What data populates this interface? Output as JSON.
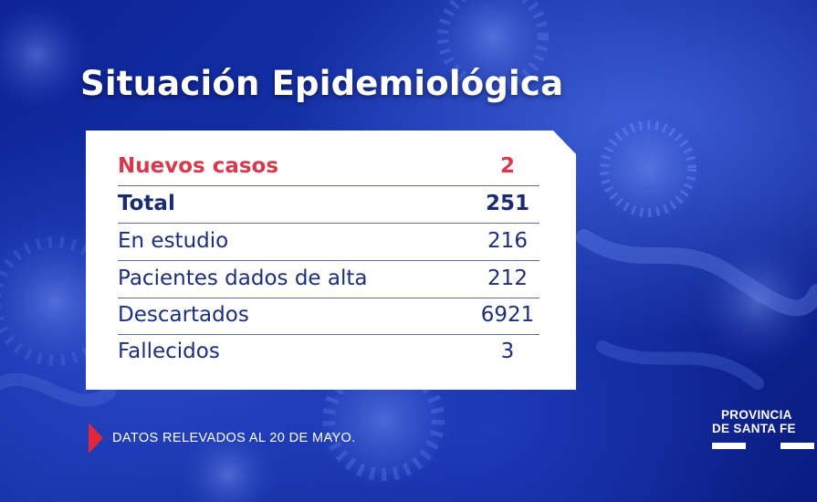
{
  "title": "Situación Epidemiológica",
  "table": {
    "rows": [
      {
        "label": "Nuevos casos",
        "value": "2"
      },
      {
        "label": "Total",
        "value": "251"
      },
      {
        "label": "En estudio",
        "value": "216"
      },
      {
        "label": "Pacientes dados de alta",
        "value": "212"
      },
      {
        "label": "Descartados",
        "value": "6921"
      },
      {
        "label": "Fallecidos",
        "value": "3"
      }
    ]
  },
  "footer": {
    "note": "DATOS RELEVADOS AL 20 DE MAYO."
  },
  "logo": {
    "line1": "PROVINCIA",
    "line2": "DE SANTA FE"
  },
  "colors": {
    "background": "#0b1f8a",
    "accent_red": "#d63a4d",
    "text_navy": "#1c2f78",
    "marker_red": "#e0283d"
  }
}
